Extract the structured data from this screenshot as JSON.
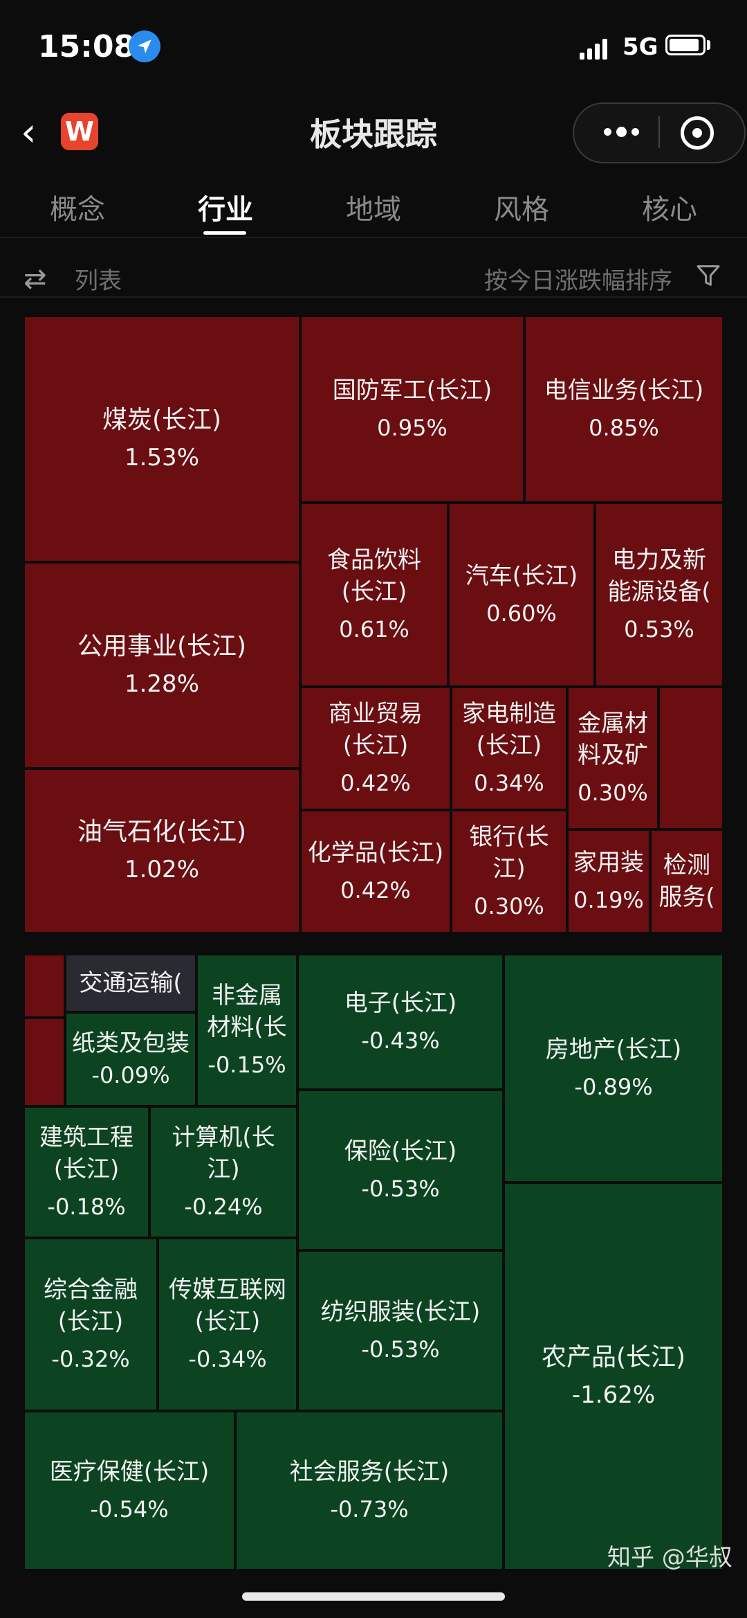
{
  "status": {
    "time": "15:08",
    "network": "5G"
  },
  "header": {
    "title": "板块跟踪",
    "app_logo": "W"
  },
  "tabs": [
    {
      "label": "概念"
    },
    {
      "label": "行业"
    },
    {
      "label": "地域"
    },
    {
      "label": "风格"
    },
    {
      "label": "核心"
    }
  ],
  "toolbar": {
    "view_toggle": "列表",
    "sort_label": "按今日涨跌幅排序"
  },
  "sectors": [
    {
      "name": "煤炭(长江)",
      "change": "1.53%"
    },
    {
      "name": "国防军工(长江)",
      "change": "0.95%"
    },
    {
      "name": "电信业务(长江)",
      "change": "0.85%"
    },
    {
      "name": "公用事业(长江)",
      "change": "1.28%"
    },
    {
      "name": "食品饮料(长江)",
      "change": "0.61%"
    },
    {
      "name": "汽车(长江)",
      "change": "0.60%"
    },
    {
      "name": "电力及新能源设备(",
      "change": "0.53%"
    },
    {
      "name": "油气石化(长江)",
      "change": "1.02%"
    },
    {
      "name": "商业贸易(长江)",
      "change": "0.42%"
    },
    {
      "name": "家电制造(长江)",
      "change": "0.34%"
    },
    {
      "name": "金属材料及矿",
      "change": "0.30%"
    },
    {
      "name": "化学品(长江)",
      "change": "0.42%"
    },
    {
      "name": "银行(长江)",
      "change": "0.30%"
    },
    {
      "name": "家用装",
      "change": "0.19%"
    },
    {
      "name": "检测服务(",
      "change": ""
    },
    {
      "name": "交通运输(",
      "change": ""
    },
    {
      "name": "纸类及包装",
      "change": "-0.09%"
    },
    {
      "name": "非金属材料(长",
      "change": "-0.15%"
    },
    {
      "name": "电子(长江)",
      "change": "-0.43%"
    },
    {
      "name": "房地产(长江)",
      "change": "-0.89%"
    },
    {
      "name": "建筑工程(长江)",
      "change": "-0.18%"
    },
    {
      "name": "计算机(长江)",
      "change": "-0.24%"
    },
    {
      "name": "保险(长江)",
      "change": "-0.53%"
    },
    {
      "name": "综合金融(长江)",
      "change": "-0.32%"
    },
    {
      "name": "传媒互联网(长江)",
      "change": "-0.34%"
    },
    {
      "name": "纺织服装(长江)",
      "change": "-0.53%"
    },
    {
      "name": "农产品(长江)",
      "change": "-1.62%"
    },
    {
      "name": "医疗保健(长江)",
      "change": "-0.54%"
    },
    {
      "name": "社会服务(长江)",
      "change": "-0.73%"
    }
  ],
  "watermark": "知乎 @华叔"
}
